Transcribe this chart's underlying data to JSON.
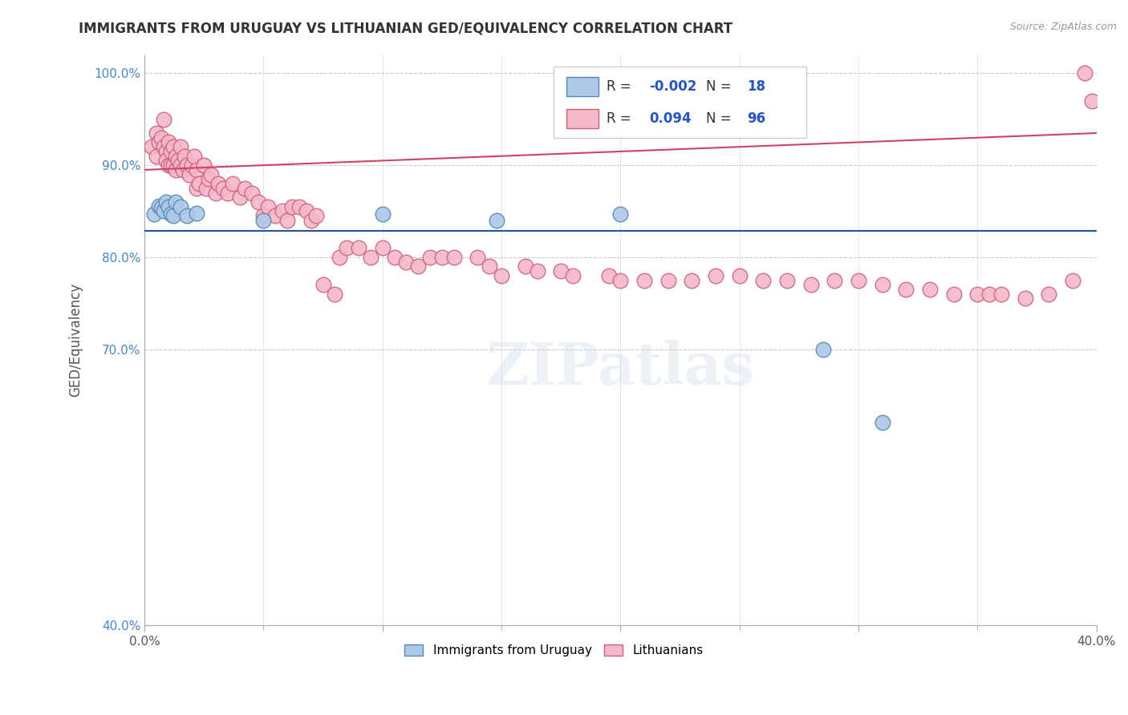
{
  "title": "IMMIGRANTS FROM URUGUAY VS LITHUANIAN GED/EQUIVALENCY CORRELATION CHART",
  "source": "Source: ZipAtlas.com",
  "ylabel": "GED/Equivalency",
  "xlim": [
    0.0,
    0.4
  ],
  "ylim": [
    0.4,
    1.02
  ],
  "xticks": [
    0.0,
    0.1,
    0.2,
    0.3,
    0.4
  ],
  "xtick_labels": [
    "0.0%",
    "",
    "",
    "",
    "40.0%"
  ],
  "yticks": [
    0.4,
    0.7,
    0.8,
    0.9,
    1.0
  ],
  "ytick_labels": [
    "40.0%",
    "70.0%",
    "80.0%",
    "90.0%",
    "100.0%"
  ],
  "legend_blue_label": "Immigrants from Uruguay",
  "legend_pink_label": "Lithuanians",
  "R_blue": -0.002,
  "N_blue": 18,
  "R_pink": 0.094,
  "N_pink": 96,
  "blue_color": "#aec8e8",
  "pink_color": "#f4b8c8",
  "blue_edge_color": "#5588bb",
  "pink_edge_color": "#d06080",
  "blue_line_color": "#2255aa",
  "pink_line_color": "#cc4466",
  "watermark": "ZIPatlas",
  "blue_scatter_x": [
    0.004,
    0.006,
    0.007,
    0.008,
    0.009,
    0.01,
    0.011,
    0.012,
    0.013,
    0.015,
    0.018,
    0.022,
    0.05,
    0.1,
    0.148,
    0.2,
    0.285,
    0.31
  ],
  "blue_scatter_y": [
    0.847,
    0.856,
    0.854,
    0.85,
    0.86,
    0.855,
    0.847,
    0.845,
    0.86,
    0.855,
    0.845,
    0.848,
    0.84,
    0.847,
    0.84,
    0.847,
    0.7,
    0.62
  ],
  "pink_scatter_x": [
    0.003,
    0.005,
    0.005,
    0.006,
    0.007,
    0.008,
    0.008,
    0.009,
    0.009,
    0.01,
    0.01,
    0.011,
    0.011,
    0.012,
    0.012,
    0.013,
    0.013,
    0.014,
    0.015,
    0.015,
    0.016,
    0.017,
    0.018,
    0.019,
    0.02,
    0.021,
    0.022,
    0.022,
    0.023,
    0.025,
    0.026,
    0.027,
    0.028,
    0.03,
    0.031,
    0.033,
    0.035,
    0.037,
    0.04,
    0.042,
    0.045,
    0.048,
    0.05,
    0.052,
    0.055,
    0.058,
    0.06,
    0.062,
    0.065,
    0.068,
    0.07,
    0.072,
    0.075,
    0.08,
    0.082,
    0.085,
    0.09,
    0.095,
    0.1,
    0.105,
    0.11,
    0.115,
    0.12,
    0.125,
    0.13,
    0.14,
    0.145,
    0.15,
    0.16,
    0.165,
    0.175,
    0.18,
    0.195,
    0.2,
    0.21,
    0.22,
    0.23,
    0.24,
    0.25,
    0.26,
    0.27,
    0.28,
    0.29,
    0.3,
    0.31,
    0.32,
    0.33,
    0.34,
    0.35,
    0.355,
    0.36,
    0.37,
    0.38,
    0.39,
    0.395,
    0.398
  ],
  "pink_scatter_y": [
    0.92,
    0.935,
    0.91,
    0.925,
    0.93,
    0.92,
    0.95,
    0.915,
    0.905,
    0.925,
    0.9,
    0.915,
    0.9,
    0.92,
    0.9,
    0.91,
    0.895,
    0.905,
    0.92,
    0.9,
    0.895,
    0.91,
    0.9,
    0.89,
    0.9,
    0.91,
    0.895,
    0.875,
    0.88,
    0.9,
    0.875,
    0.885,
    0.89,
    0.87,
    0.88,
    0.875,
    0.87,
    0.88,
    0.865,
    0.875,
    0.87,
    0.86,
    0.845,
    0.855,
    0.845,
    0.85,
    0.84,
    0.855,
    0.855,
    0.85,
    0.84,
    0.845,
    0.77,
    0.76,
    0.8,
    0.81,
    0.81,
    0.8,
    0.81,
    0.8,
    0.795,
    0.79,
    0.8,
    0.8,
    0.8,
    0.8,
    0.79,
    0.78,
    0.79,
    0.785,
    0.785,
    0.78,
    0.78,
    0.775,
    0.775,
    0.775,
    0.775,
    0.78,
    0.78,
    0.775,
    0.775,
    0.77,
    0.775,
    0.775,
    0.77,
    0.765,
    0.765,
    0.76,
    0.76,
    0.76,
    0.76,
    0.755,
    0.76,
    0.775,
    1.0,
    0.97
  ]
}
